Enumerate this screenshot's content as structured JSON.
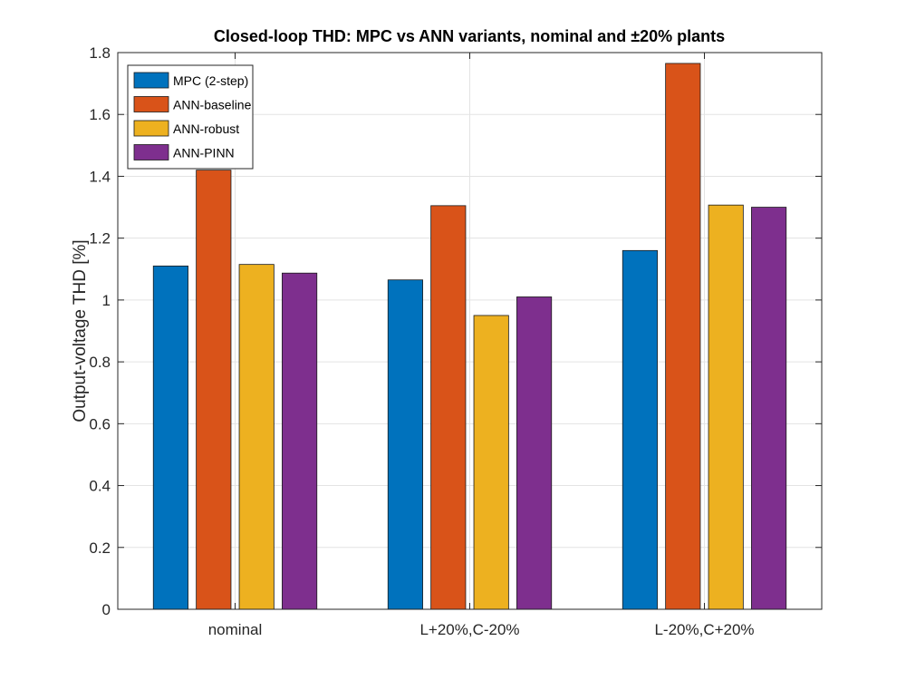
{
  "chart_data": {
    "type": "bar",
    "title": "Closed-loop THD: MPC vs ANN variants, nominal and ±20% plants",
    "xlabel": "",
    "ylabel": "Output-voltage THD [%]",
    "categories": [
      "nominal",
      "L+20%,C-20%",
      "L-20%,C+20%"
    ],
    "series": [
      {
        "name": "MPC (2-step)",
        "color": "#0072BD",
        "values": [
          1.11,
          1.065,
          1.16
        ]
      },
      {
        "name": "ANN-baseline",
        "color": "#D95319",
        "values": [
          1.42,
          1.305,
          1.765
        ]
      },
      {
        "name": "ANN-robust",
        "color": "#EDB120",
        "values": [
          1.115,
          0.95,
          1.307
        ]
      },
      {
        "name": "ANN-PINN",
        "color": "#7E2F8E",
        "values": [
          1.087,
          1.01,
          1.3
        ]
      }
    ],
    "ylim": [
      0,
      1.8
    ],
    "yticks": [
      0,
      0.2,
      0.4,
      0.6,
      0.8,
      1,
      1.2,
      1.4,
      1.6,
      1.8
    ],
    "ytick_labels": [
      "0",
      "0.2",
      "0.4",
      "0.6",
      "0.8",
      "1",
      "1.2",
      "1.4",
      "1.6",
      "1.8"
    ],
    "grid": true,
    "legend_position": "top-left"
  }
}
